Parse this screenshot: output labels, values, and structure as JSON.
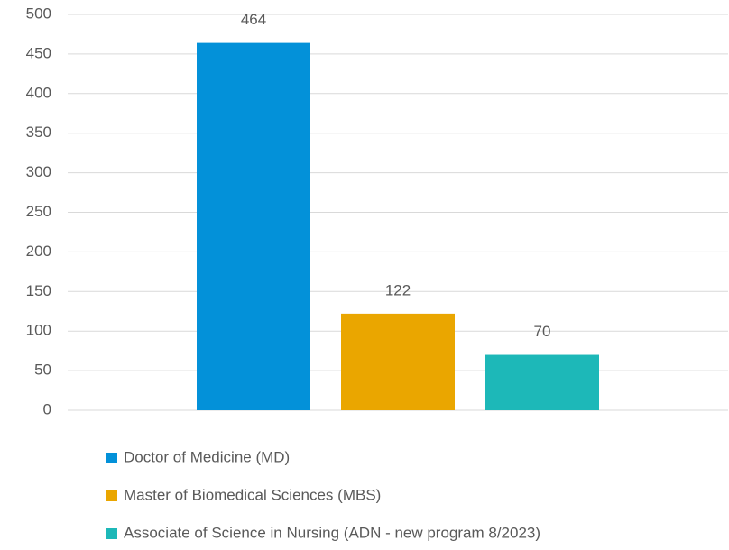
{
  "chart_data": {
    "type": "bar",
    "categories": [
      null
    ],
    "series": [
      {
        "name": "Doctor of Medicine (MD)",
        "color": "#0391d9",
        "values": [
          464
        ]
      },
      {
        "name": "Master of Biomedical Sciences (MBS)",
        "color": "#eaa600",
        "values": [
          122
        ]
      },
      {
        "name": "Associate of Science in Nursing (ADN - new program 8/2023)",
        "color": "#1db8b8",
        "values": [
          70
        ]
      }
    ],
    "ylim": [
      0,
      500
    ],
    "yticks": [
      0,
      50,
      100,
      150,
      200,
      250,
      300,
      350,
      400,
      450,
      500
    ],
    "grid": true,
    "legend": "bottom",
    "data_labels": true
  }
}
